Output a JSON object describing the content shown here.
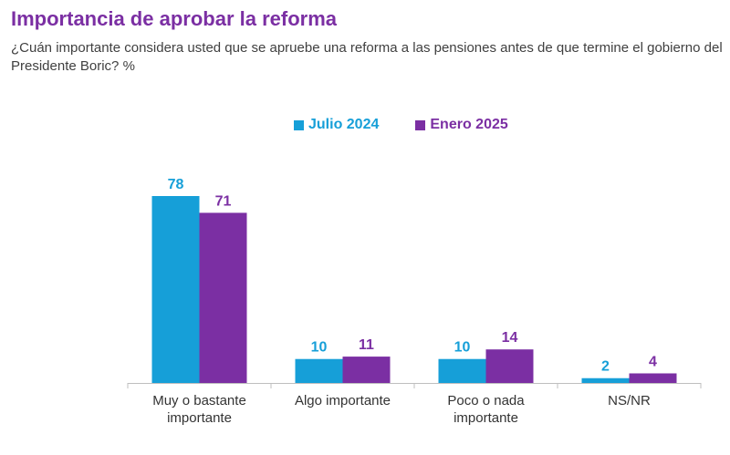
{
  "header": {
    "title": "Importancia de aprobar la reforma",
    "subtitle": "¿Cuán importante considera usted que se apruebe una reforma a las pensiones antes de que termine el gobierno del Presidente Boric? %"
  },
  "chart_data": {
    "type": "bar",
    "title": "Importancia de aprobar la reforma",
    "subtitle": "¿Cuán importante considera usted que se apruebe una reforma a las pensiones antes de que termine el gobierno del Presidente Boric? %",
    "xlabel": "",
    "ylabel": "",
    "categories": [
      [
        "Muy o bastante",
        "importante"
      ],
      [
        "Algo importante"
      ],
      [
        "Poco o nada",
        "importante"
      ],
      [
        "NS/NR"
      ]
    ],
    "series": [
      {
        "name": "Julio 2024",
        "color": "#169fd8",
        "values": [
          78,
          10,
          10,
          2
        ]
      },
      {
        "name": "Enero 2025",
        "color": "#7b2fa3",
        "values": [
          71,
          11,
          14,
          4
        ]
      }
    ],
    "ylim": [
      0,
      78
    ],
    "grid": false,
    "legend_position": "top"
  }
}
